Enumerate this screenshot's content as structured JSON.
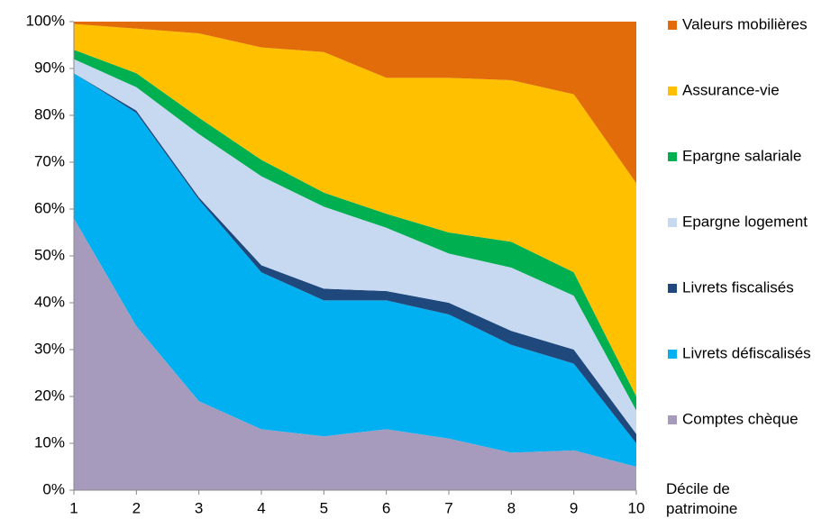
{
  "chart_data": {
    "type": "stacked_area",
    "x": [
      1,
      2,
      3,
      4,
      5,
      6,
      7,
      8,
      9,
      10
    ],
    "xlim": [
      1,
      10
    ],
    "xticks": [
      1,
      2,
      3,
      4,
      5,
      6,
      7,
      8,
      9,
      10
    ],
    "xlabel": "Décile de patrimoine",
    "ylim": [
      0,
      100
    ],
    "yticks": [
      {
        "value": 0,
        "label": "0%"
      },
      {
        "value": 10,
        "label": "10%"
      },
      {
        "value": 20,
        "label": "20%"
      },
      {
        "value": 30,
        "label": "30%"
      },
      {
        "value": 40,
        "label": "40%"
      },
      {
        "value": 50,
        "label": "50%"
      },
      {
        "value": 60,
        "label": "60%"
      },
      {
        "value": 70,
        "label": "70%"
      },
      {
        "value": 80,
        "label": "80%"
      },
      {
        "value": 90,
        "label": "90%"
      },
      {
        "value": 100,
        "label": "100%"
      }
    ],
    "legend": "right",
    "series": [
      {
        "name": "Comptes chèque",
        "color": "#a79bbd",
        "values": [
          58,
          35,
          19,
          13,
          11.5,
          13,
          11,
          8,
          8.5,
          5
        ]
      },
      {
        "name": "Livrets défiscalisés",
        "color": "#00b0f0",
        "values": [
          31,
          45.5,
          43,
          33.5,
          29,
          27.5,
          26.5,
          23,
          18.5,
          5
        ]
      },
      {
        "name": "Livrets fiscalisés",
        "color": "#1f497d",
        "values": [
          0,
          0.5,
          0.5,
          1.5,
          2.5,
          2,
          2.5,
          3,
          3,
          2
        ]
      },
      {
        "name": "Epargne logement",
        "color": "#c6d9f1",
        "values": [
          3,
          5,
          13.5,
          19,
          17.5,
          13.5,
          10.5,
          13.5,
          11.5,
          5
        ]
      },
      {
        "name": "Epargne salariale",
        "color": "#00b050",
        "values": [
          2,
          3,
          3.5,
          3.5,
          3,
          3,
          4.5,
          5.5,
          5,
          3
        ]
      },
      {
        "name": "Assurance-vie",
        "color": "#ffc000",
        "values": [
          5.5,
          9.5,
          18,
          24,
          30,
          29,
          33,
          34.5,
          38,
          45.5
        ]
      },
      {
        "name": "Valeurs mobilières",
        "color": "#e36c0a",
        "values": [
          0.5,
          1.5,
          2.5,
          5.5,
          6.5,
          12,
          12,
          12.5,
          15.5,
          34.5
        ]
      }
    ]
  }
}
